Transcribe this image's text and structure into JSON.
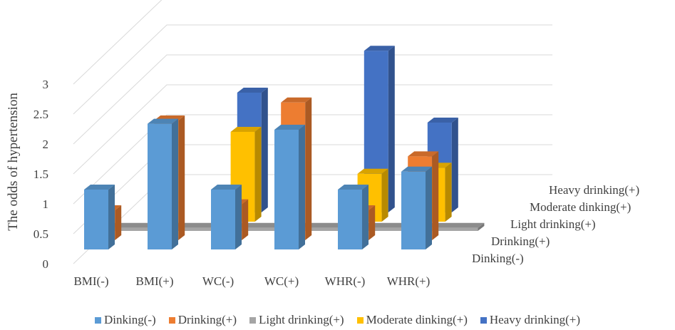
{
  "chart_data": {
    "type": "bar",
    "subtype": "3d-clustered",
    "ylabel": "The odds of hypertension",
    "ylim": [
      0,
      3
    ],
    "yticks": [
      "0",
      "0.5",
      "1",
      "1.5",
      "2",
      "2.5",
      "3"
    ],
    "grid": true,
    "categories": [
      "BMI(-)",
      "BMI(+)",
      "WC(-)",
      "WC(+)",
      "WHR(-)",
      "WHR(+)"
    ],
    "depth_labels": [
      "Dinking(-)",
      "Drinking(+)",
      "Light drinking(+)",
      "Moderate dinking(+)",
      "Heavy drinking(+)"
    ],
    "legend_position": "bottom",
    "series": [
      {
        "name": "Dinking(-)",
        "color": "#5b9bd5",
        "values": [
          1.0,
          2.1,
          1.0,
          2.0,
          1.0,
          1.3
        ]
      },
      {
        "name": "Drinking(+)",
        "color": "#ed7d31",
        "values": [
          0.5,
          2.0,
          0.6,
          2.3,
          0.5,
          1.4
        ]
      },
      {
        "name": "Light drinking(+)",
        "color": "#a5a5a5",
        "values": [
          0.05,
          0.05,
          0.05,
          0.05,
          0.05,
          0.05
        ]
      },
      {
        "name": "Moderate dinking(+)",
        "color": "#ffc000",
        "values": [
          null,
          null,
          1.5,
          null,
          0.8,
          0.9
        ]
      },
      {
        "name": "Heavy drinking(+)",
        "color": "#4472c4",
        "values": [
          null,
          null,
          2.0,
          null,
          2.7,
          1.5
        ]
      }
    ]
  }
}
